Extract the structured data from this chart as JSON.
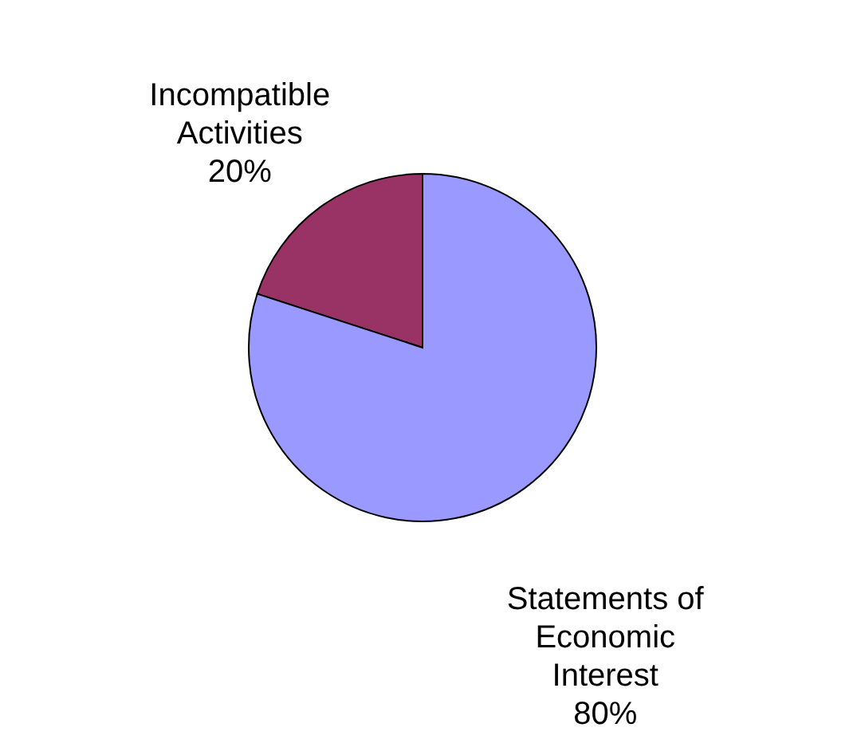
{
  "chart_data": {
    "type": "pie",
    "categories": [
      "Incompatible Activities",
      "Statements of Economic Interest"
    ],
    "values": [
      20,
      80
    ],
    "colors": [
      "#993366",
      "#9999ff"
    ],
    "value_labels": [
      "20%",
      "80%"
    ]
  }
}
